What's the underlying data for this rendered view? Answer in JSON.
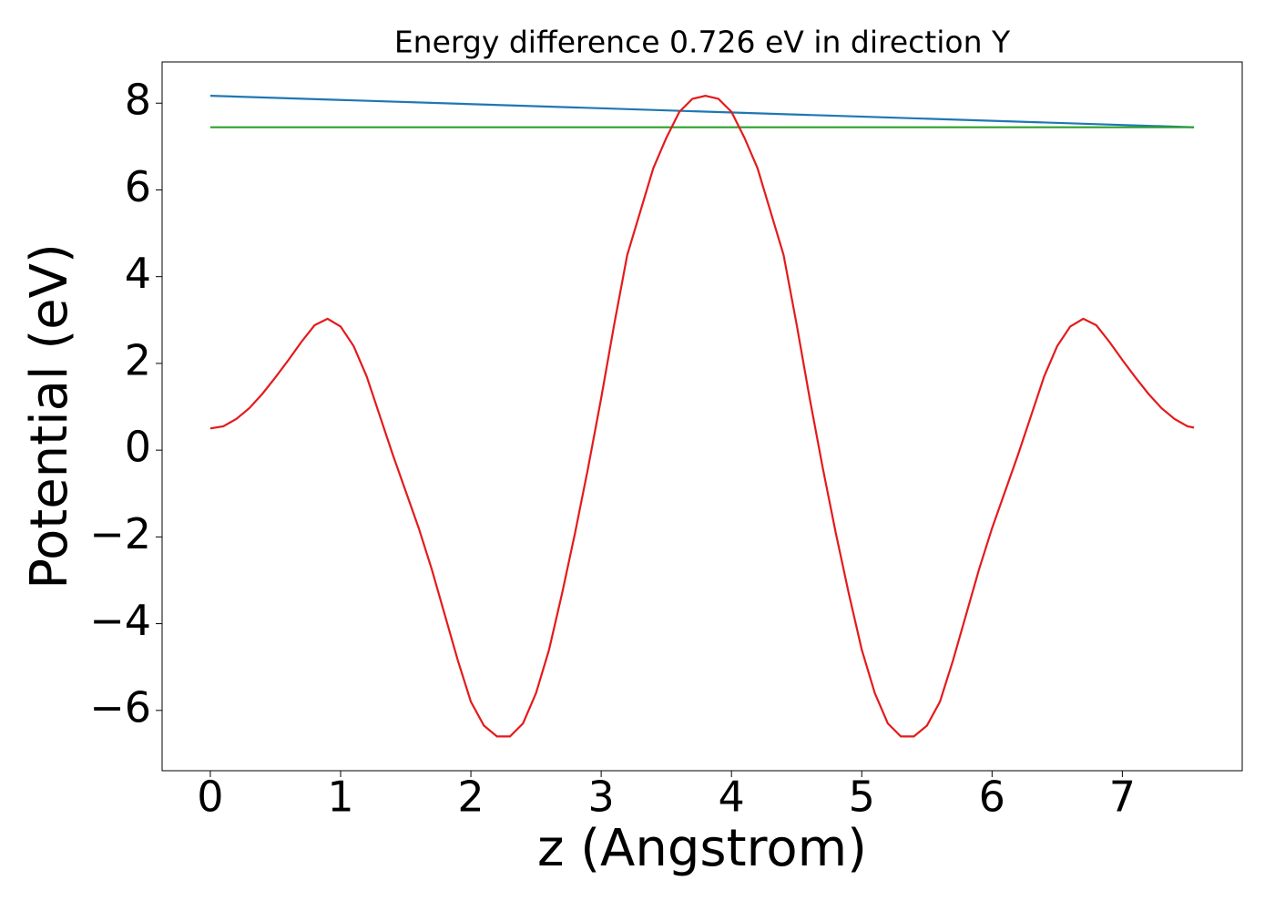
{
  "chart_data": {
    "type": "line",
    "title": "Energy difference 0.726 eV in direction Y",
    "x_label": "z (Angstrom)",
    "y_label": "Potential (eV)",
    "xlim": [
      -0.37,
      7.92
    ],
    "ylim": [
      -7.39,
      8.95
    ],
    "xticks": [
      0,
      1,
      2,
      3,
      4,
      5,
      6,
      7
    ],
    "yticks": [
      {
        "value": -6,
        "label": "−6"
      },
      {
        "value": -4,
        "label": "−4"
      },
      {
        "value": -2,
        "label": "−2"
      },
      0,
      2,
      4,
      6,
      8
    ],
    "series": [
      {
        "color": "#1f77b4",
        "x": [
          0,
          7.55
        ],
        "values": [
          8.17,
          7.444
        ]
      },
      {
        "color": "#2ca02c",
        "x": [
          0,
          7.55
        ],
        "values": [
          7.444,
          7.444
        ]
      },
      {
        "color": "#e41a1c",
        "x": [
          0,
          0.1,
          0.2,
          0.3,
          0.4,
          0.5,
          0.6,
          0.7,
          0.8,
          0.9,
          1.0,
          1.1,
          1.2,
          1.3,
          1.4,
          1.5,
          1.6,
          1.7,
          1.8,
          1.9,
          2.0,
          2.1,
          2.2,
          2.3,
          2.4,
          2.5,
          2.6,
          2.7,
          2.8,
          2.9,
          3.0,
          3.1,
          3.2,
          3.3,
          3.4,
          3.5,
          3.6,
          3.7,
          3.8,
          3.9,
          4.0,
          4.1,
          4.2,
          4.3,
          4.4,
          4.5,
          4.6,
          4.7,
          4.8,
          4.9,
          5.0,
          5.1,
          5.2,
          5.3,
          5.4,
          5.5,
          5.6,
          5.7,
          5.8,
          5.9,
          6.0,
          6.1,
          6.2,
          6.3,
          6.4,
          6.5,
          6.6,
          6.7,
          6.8,
          6.9,
          7.0,
          7.1,
          7.2,
          7.3,
          7.4,
          7.5,
          7.55
        ],
        "values": [
          0.5,
          0.55,
          0.72,
          0.97,
          1.3,
          1.68,
          2.08,
          2.5,
          2.88,
          3.03,
          2.85,
          2.4,
          1.7,
          0.8,
          -0.1,
          -0.95,
          -1.8,
          -2.75,
          -3.8,
          -4.85,
          -5.8,
          -6.35,
          -6.6,
          -6.6,
          -6.3,
          -5.6,
          -4.6,
          -3.3,
          -1.9,
          -0.4,
          1.2,
          2.9,
          4.5,
          5.5,
          6.5,
          7.2,
          7.8,
          8.1,
          8.17,
          8.1,
          7.8,
          7.2,
          6.5,
          5.5,
          4.5,
          2.9,
          1.2,
          -0.4,
          -1.9,
          -3.3,
          -4.6,
          -5.6,
          -6.3,
          -6.6,
          -6.6,
          -6.35,
          -5.8,
          -4.85,
          -3.8,
          -2.75,
          -1.8,
          -0.95,
          -0.1,
          0.8,
          1.7,
          2.4,
          2.85,
          3.03,
          2.88,
          2.5,
          2.08,
          1.68,
          1.3,
          0.97,
          0.72,
          0.55,
          0.52
        ]
      }
    ]
  }
}
